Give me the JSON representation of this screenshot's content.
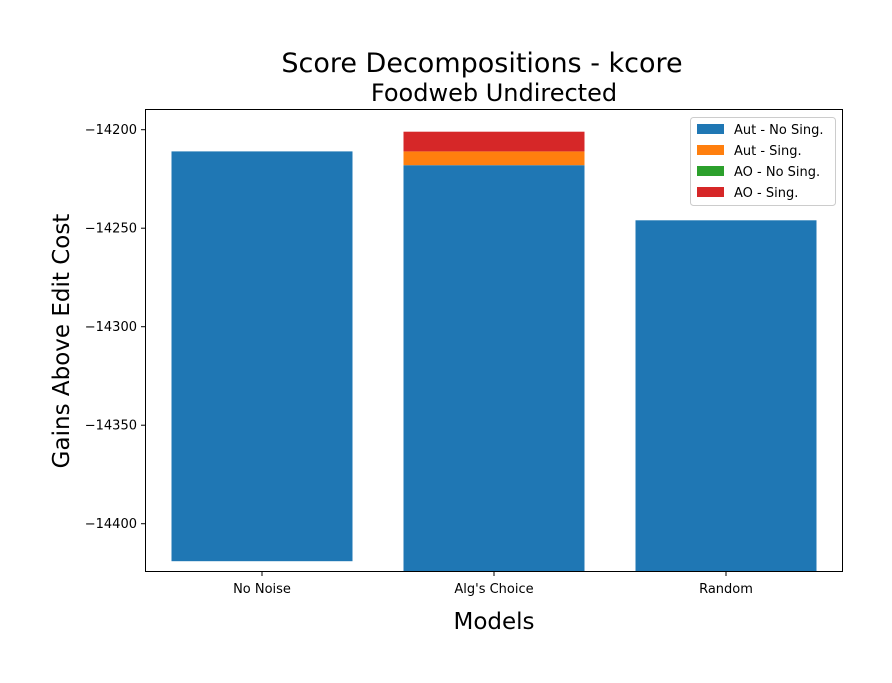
{
  "chart_data": {
    "type": "bar",
    "stacked": true,
    "title": "Score Decompositions - kcore",
    "subtitle": "Foodweb Undirected",
    "xlabel": "Models",
    "ylabel": "Gains Above Edit Cost",
    "categories": [
      "No Noise",
      "Alg's Choice",
      "Random"
    ],
    "ylim": [
      -14424,
      -14190
    ],
    "yticks": [
      -14200,
      -14250,
      -14300,
      -14350,
      -14400
    ],
    "ytick_labels": [
      "−14200",
      "−14250",
      "−14300",
      "−14350",
      "−14400"
    ],
    "series": [
      {
        "name": "Aut - No Sing.",
        "color": "#1f77b4",
        "segments": [
          [
            -14419,
            -14211
          ],
          [
            -14424,
            -14218
          ],
          [
            -14424,
            -14246
          ]
        ]
      },
      {
        "name": "Aut - Sing.",
        "color": "#ff7f0e",
        "segments": [
          null,
          [
            -14218,
            -14211
          ],
          null
        ]
      },
      {
        "name": "AO - No Sing.",
        "color": "#2ca02c",
        "segments": [
          null,
          null,
          null
        ]
      },
      {
        "name": "AO - Sing.",
        "color": "#d62728",
        "segments": [
          null,
          [
            -14211,
            -14201
          ],
          null
        ]
      }
    ],
    "grid": false,
    "legend_position": "top-right"
  }
}
